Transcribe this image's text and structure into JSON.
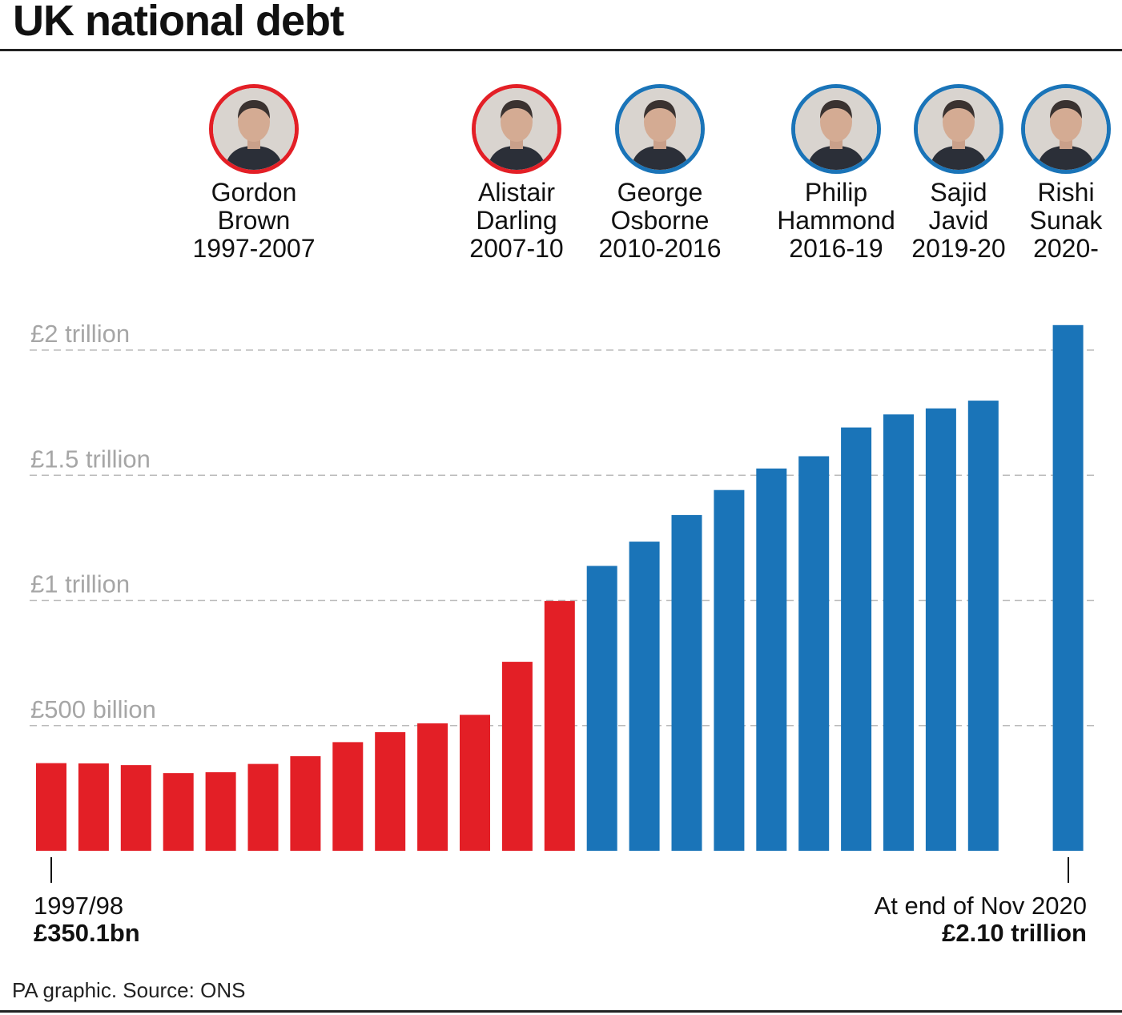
{
  "title": "UK national debt",
  "source": "PA graphic. Source: ONS",
  "colors": {
    "labour": "#e31f26",
    "conservative": "#1a74b8",
    "grid": "#bbbbbb",
    "axis_text": "#a6a6a6"
  },
  "chancellors": [
    {
      "first": "Gordon",
      "last": "Brown",
      "years": "1997-2007",
      "party": "labour"
    },
    {
      "first": "Alistair",
      "last": "Darling",
      "years": "2007-10",
      "party": "labour"
    },
    {
      "first": "George",
      "last": "Osborne",
      "years": "2010-2016",
      "party": "conservative"
    },
    {
      "first": "Philip",
      "last": "Hammond",
      "years": "2016-19",
      "party": "conservative"
    },
    {
      "first": "Sajid",
      "last": "Javid",
      "years": "2019-20",
      "party": "conservative"
    },
    {
      "first": "Rishi",
      "last": "Sunak",
      "years": "2020-",
      "party": "conservative"
    }
  ],
  "annotations": {
    "start": {
      "label": "1997/98",
      "value": "£350.1bn"
    },
    "end": {
      "label": "At end of Nov 2020",
      "value": "£2.10 trillion"
    }
  },
  "chart_data": {
    "type": "bar",
    "title": "UK national debt",
    "unit": "£ billion",
    "y_ticks": [
      {
        "value": 500,
        "label": "£500 billion"
      },
      {
        "value": 1000,
        "label": "£1 trillion"
      },
      {
        "value": 1500,
        "label": "£1.5 trillion"
      },
      {
        "value": 2000,
        "label": "£2 trillion"
      }
    ],
    "ylim": [
      0,
      2100
    ],
    "grid": true,
    "series": [
      {
        "color": "#e31f26",
        "values": [
          350,
          349,
          342,
          310,
          314,
          347,
          378,
          434,
          474,
          509,
          543,
          755,
          998
        ]
      },
      {
        "color": "#1a74b8",
        "values": [
          1138,
          1235,
          1341,
          1441,
          1527,
          1576,
          1691,
          1743,
          1767,
          1798
        ]
      },
      {
        "color": "#1a74b8",
        "values": [
          2100
        ]
      }
    ]
  }
}
